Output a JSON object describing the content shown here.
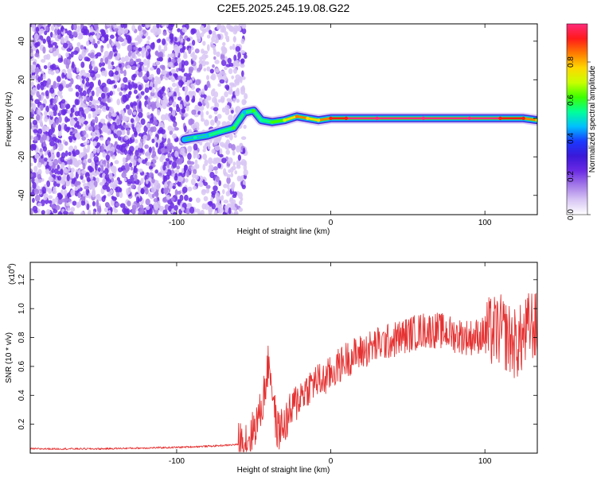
{
  "figure_title": "C2E5.2025.245.19.08.G22",
  "colors": {
    "snr_line": "#e53232",
    "ridge_core": "#e53232",
    "frame": "#000000",
    "colormap": [
      "#ffffff",
      "#d8c6f4",
      "#a47ae8",
      "#6a2ae4",
      "#3a18d8",
      "#1a3aff",
      "#00bfff",
      "#00ff9a",
      "#3cff00",
      "#c8ff00",
      "#ffd800",
      "#ff7a00",
      "#ff1a1a",
      "#ff2a7a"
    ]
  },
  "chart_data": [
    {
      "type": "heatmap",
      "xlabel": "Height of straight line (km)",
      "ylabel": "Frequency (Hz)",
      "x_ticks": [
        "-100",
        "0",
        "100"
      ],
      "y_ticks": [
        "-40",
        "-20",
        "0",
        "20",
        "40"
      ],
      "xlim": [
        -195,
        134
      ],
      "ylim": [
        -50,
        49
      ],
      "colorbar": {
        "label": "Normalized spectral amplitude",
        "ticks": [
          "0.0",
          "0.2",
          "0.4",
          "0.6",
          "0.8"
        ],
        "range": [
          0,
          1
        ]
      },
      "ridge": [
        {
          "x": -95,
          "y": -11,
          "a": 0.45
        },
        {
          "x": -88,
          "y": -10,
          "a": 0.5
        },
        {
          "x": -80,
          "y": -9,
          "a": 0.45
        },
        {
          "x": -72,
          "y": -7,
          "a": 0.55
        },
        {
          "x": -63,
          "y": -5,
          "a": 0.6
        },
        {
          "x": -56,
          "y": 3,
          "a": 0.45
        },
        {
          "x": -50,
          "y": 4,
          "a": 0.6
        },
        {
          "x": -45,
          "y": -1,
          "a": 0.55
        },
        {
          "x": -38,
          "y": -2,
          "a": 0.6
        },
        {
          "x": -30,
          "y": -1,
          "a": 0.7
        },
        {
          "x": -22,
          "y": 1,
          "a": 0.85
        },
        {
          "x": -15,
          "y": 0,
          "a": 0.8
        },
        {
          "x": -8,
          "y": -1,
          "a": 0.8
        },
        {
          "x": 0,
          "y": 0,
          "a": 0.9
        },
        {
          "x": 10,
          "y": 0,
          "a": 0.95
        },
        {
          "x": 30,
          "y": 0,
          "a": 1.0
        },
        {
          "x": 60,
          "y": 0,
          "a": 1.0
        },
        {
          "x": 90,
          "y": 0,
          "a": 1.0
        },
        {
          "x": 110,
          "y": 0,
          "a": 0.95
        },
        {
          "x": 125,
          "y": 0,
          "a": 0.95
        },
        {
          "x": 134,
          "y": -1,
          "a": 0.7
        }
      ]
    },
    {
      "type": "line",
      "xlabel": "Height of straight line (km)",
      "ylabel": "SNR (10 * v/v)",
      "y_multiplier": "(x10",
      "y_multiplier_exp": "4",
      "y_multiplier_close": ")",
      "x_ticks": [
        "-100",
        "0",
        "100"
      ],
      "y_ticks": [
        "0.2",
        "0.4",
        "0.6",
        "0.8",
        "1.0",
        "1.2"
      ],
      "xlim": [
        -195,
        134
      ],
      "ylim": [
        0,
        1.32
      ],
      "series": [
        {
          "color": "#e53232",
          "x": [
            -195,
            -150,
            -100,
            -75,
            -60,
            -52,
            -45,
            -42,
            -40,
            -38,
            -35,
            -30,
            -25,
            -20,
            -15,
            -10,
            -5,
            0,
            5,
            10,
            20,
            30,
            40,
            50,
            60,
            70,
            80,
            90,
            100,
            105,
            110,
            115,
            120,
            125,
            130,
            134
          ],
          "y": [
            0.03,
            0.03,
            0.04,
            0.05,
            0.06,
            0.12,
            0.3,
            0.5,
            0.65,
            0.45,
            0.15,
            0.2,
            0.3,
            0.4,
            0.45,
            0.5,
            0.5,
            0.55,
            0.6,
            0.65,
            0.7,
            0.75,
            0.78,
            0.82,
            0.85,
            0.85,
            0.82,
            0.8,
            0.82,
            0.84,
            0.85,
            0.8,
            0.75,
            0.8,
            0.9,
            0.85
          ]
        }
      ]
    }
  ]
}
